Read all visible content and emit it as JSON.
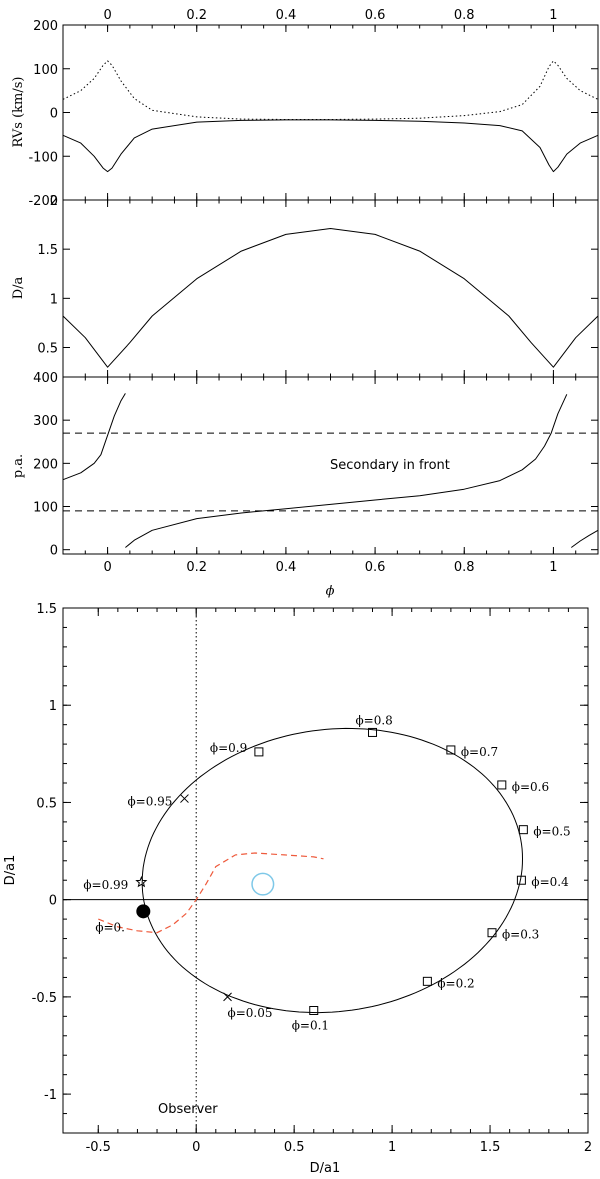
{
  "chart_data": [
    {
      "type": "line",
      "panel": "radial-velocity",
      "ylabel": "RVs (km/s)",
      "xlim": [
        -0.1,
        1.1
      ],
      "ylim": [
        -200,
        200
      ],
      "xticks": [
        0,
        0.2,
        0.4,
        0.6,
        0.8,
        1
      ],
      "xtick_labels": [
        "0",
        "0.2",
        "0.4",
        "0.6",
        "0.8",
        "1"
      ],
      "yticks": [
        -200,
        -100,
        0,
        100,
        200
      ],
      "ytick_labels": [
        "-200",
        "-100",
        "0",
        "100",
        "200"
      ],
      "series": [
        {
          "name": "primary",
          "style": "solid",
          "x": [
            -0.1,
            -0.06,
            -0.03,
            -0.01,
            0,
            0.01,
            0.03,
            0.06,
            0.1,
            0.2,
            0.3,
            0.4,
            0.5,
            0.6,
            0.7,
            0.8,
            0.88,
            0.93,
            0.97,
            0.99,
            1,
            1.01,
            1.03,
            1.06,
            1.1
          ],
          "y": [
            -52,
            -70,
            -100,
            -127,
            -135,
            -127,
            -95,
            -58,
            -38,
            -22,
            -18,
            -17,
            -17,
            -18,
            -20,
            -24,
            -30,
            -42,
            -80,
            -120,
            -135,
            -125,
            -95,
            -70,
            -52
          ]
        },
        {
          "name": "secondary",
          "style": "dotted",
          "x": [
            -0.1,
            -0.06,
            -0.03,
            -0.01,
            0,
            0.01,
            0.03,
            0.06,
            0.1,
            0.2,
            0.3,
            0.4,
            0.5,
            0.6,
            0.7,
            0.8,
            0.88,
            0.93,
            0.97,
            0.99,
            1,
            1.01,
            1.03,
            1.06,
            1.1
          ],
          "y": [
            30,
            50,
            78,
            108,
            118,
            108,
            72,
            32,
            5,
            -10,
            -15,
            -16,
            -16,
            -15,
            -13,
            -7,
            2,
            18,
            60,
            105,
            118,
            108,
            78,
            50,
            30
          ]
        }
      ]
    },
    {
      "type": "line",
      "panel": "separation",
      "ylabel": "D/a",
      "xlim": [
        -0.1,
        1.1
      ],
      "ylim": [
        0.2,
        2.0
      ],
      "yticks": [
        0.5,
        1,
        1.5,
        2
      ],
      "ytick_labels": [
        "0.5",
        "1",
        "1.5",
        "2"
      ],
      "series": [
        {
          "name": "separation",
          "style": "solid",
          "x": [
            -0.1,
            -0.05,
            0,
            0.05,
            0.1,
            0.2,
            0.3,
            0.4,
            0.5,
            0.6,
            0.7,
            0.8,
            0.9,
            0.95,
            1,
            1.05,
            1.1
          ],
          "y": [
            0.82,
            0.6,
            0.3,
            0.55,
            0.82,
            1.2,
            1.48,
            1.65,
            1.71,
            1.65,
            1.48,
            1.2,
            0.82,
            0.55,
            0.3,
            0.6,
            0.82
          ]
        }
      ]
    },
    {
      "type": "line",
      "panel": "position-angle",
      "ylabel": "p.a.",
      "xlabel": "ϕ",
      "xlim": [
        -0.1,
        1.1
      ],
      "ylim": [
        -10,
        400
      ],
      "yticks": [
        0,
        100,
        200,
        300,
        400
      ],
      "ytick_labels": [
        "0",
        "100",
        "200",
        "300",
        "400"
      ],
      "hlines": [
        270,
        90
      ],
      "annotation": "Secondary in front",
      "series": [
        {
          "name": "pa-a",
          "style": "solid",
          "x": [
            -0.1,
            -0.06,
            -0.03,
            -0.015,
            0,
            0.015,
            0.03,
            0.04
          ],
          "y": [
            162,
            178,
            200,
            220,
            265,
            310,
            345,
            362
          ]
        },
        {
          "name": "pa-b",
          "style": "solid",
          "x": [
            0.04,
            0.06,
            0.1,
            0.2,
            0.3,
            0.4,
            0.5,
            0.6,
            0.7,
            0.8,
            0.88,
            0.93,
            0.96,
            0.98,
            0.995,
            1.01,
            1.03
          ],
          "y": [
            5,
            22,
            45,
            72,
            85,
            95,
            105,
            115,
            125,
            140,
            160,
            185,
            210,
            240,
            270,
            315,
            360
          ]
        },
        {
          "name": "pa-c",
          "style": "solid",
          "x": [
            1.04,
            1.06,
            1.08,
            1.1
          ],
          "y": [
            5,
            20,
            33,
            45
          ]
        }
      ]
    },
    {
      "type": "line",
      "panel": "orbit",
      "xlabel": "D/a1",
      "ylabel": "D/a1",
      "xlim": [
        -0.68,
        2.0
      ],
      "ylim": [
        -1.2,
        1.5
      ],
      "xticks": [
        -0.5,
        0,
        0.5,
        1,
        1.5,
        2
      ],
      "xtick_labels": [
        "-0.5",
        "0",
        "0.5",
        "1",
        "1.5",
        "2"
      ],
      "yticks": [
        -1,
        -0.5,
        0,
        0.5,
        1,
        1.5
      ],
      "ytick_labels": [
        "-1",
        "-0.5",
        "0",
        "0.5",
        "1",
        "1.5"
      ],
      "orbit_center": [
        0.695,
        0.15
      ],
      "orbit_semi_axes": [
        0.975,
        0.725
      ],
      "orbit_tilt_deg": 8,
      "phase_points": [
        {
          "label": "ϕ=0.",
          "x": -0.27,
          "y": -0.06,
          "marker": "filled-circle"
        },
        {
          "label": "ϕ=0.05",
          "x": 0.16,
          "y": -0.5,
          "marker": "cross"
        },
        {
          "label": "ϕ=0.1",
          "x": 0.6,
          "y": -0.57,
          "marker": "square"
        },
        {
          "label": "ϕ=0.2",
          "x": 1.18,
          "y": -0.42,
          "marker": "square"
        },
        {
          "label": "ϕ=0.3",
          "x": 1.51,
          "y": -0.17,
          "marker": "square"
        },
        {
          "label": "ϕ=0.4",
          "x": 1.66,
          "y": 0.1,
          "marker": "square"
        },
        {
          "label": "ϕ=0.5",
          "x": 1.67,
          "y": 0.36,
          "marker": "square"
        },
        {
          "label": "ϕ=0.6",
          "x": 1.56,
          "y": 0.59,
          "marker": "square"
        },
        {
          "label": "ϕ=0.7",
          "x": 1.3,
          "y": 0.77,
          "marker": "square"
        },
        {
          "label": "ϕ=0.8",
          "x": 0.9,
          "y": 0.86,
          "marker": "square"
        },
        {
          "label": "ϕ=0.9",
          "x": 0.32,
          "y": 0.76,
          "marker": "square"
        },
        {
          "label": "ϕ=0.95",
          "x": -0.06,
          "y": 0.52,
          "marker": "cross"
        },
        {
          "label": "ϕ=0.99",
          "x": -0.28,
          "y": 0.09,
          "marker": "star"
        }
      ],
      "primary_star": {
        "x": 0.34,
        "y": 0.08,
        "r": 0.055,
        "color": "#7ec8e8"
      },
      "dashed_path": {
        "color": "#ee5a3c",
        "x": [
          -0.5,
          -0.4,
          -0.3,
          -0.2,
          -0.12,
          -0.05,
          0,
          0.05,
          0.1,
          0.2,
          0.3,
          0.45,
          0.6,
          0.65
        ],
        "y": [
          -0.1,
          -0.14,
          -0.16,
          -0.17,
          -0.13,
          -0.07,
          0,
          0.08,
          0.17,
          0.23,
          0.24,
          0.23,
          0.22,
          0.21
        ]
      },
      "observer_line_x": 0,
      "annotation": "Observer"
    }
  ]
}
